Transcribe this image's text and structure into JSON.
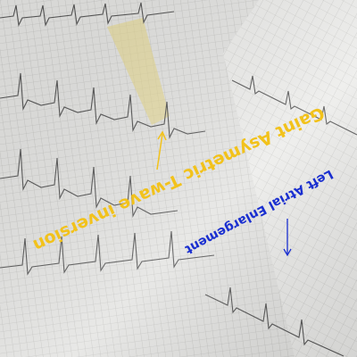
{
  "annotations": [
    {
      "text": "Gaint Asymetric T-wave inversion",
      "color": "#f2c21b"
    },
    {
      "text": "Left Atrial Enlargement",
      "color": "#1a2fd0"
    }
  ]
}
